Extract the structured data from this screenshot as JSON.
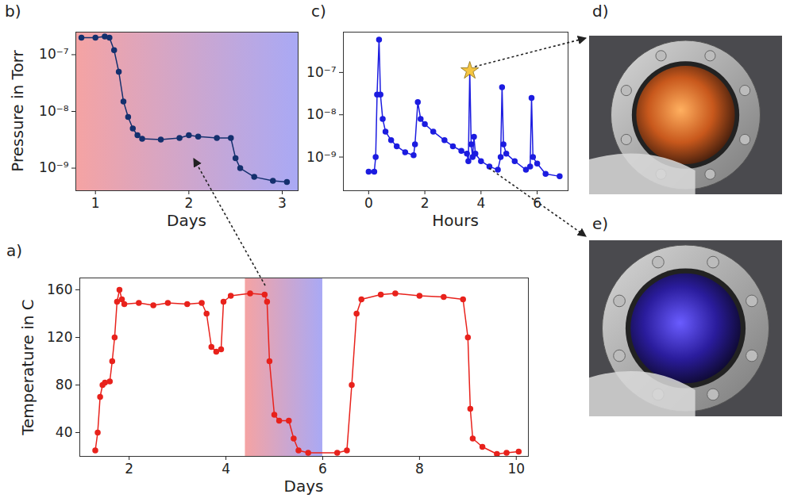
{
  "chart_data": [
    {
      "type": "line",
      "panel_label": "b)",
      "x_label": "Days",
      "y_label": "Pressure in Torr",
      "log": "y",
      "grid": false,
      "xlim": [
        0.79,
        3.17
      ],
      "xticks": [
        1,
        2,
        3
      ],
      "ylim": [
        4e-10,
        2.5e-07
      ],
      "yticks": [
        {
          "value": 1e-09,
          "label": "10⁻⁹"
        },
        {
          "value": 1e-08,
          "label": "10⁻⁸"
        },
        {
          "value": 1e-07,
          "label": "10⁻⁷"
        }
      ],
      "background_colors": [
        "#f5a3a3",
        "#a9a9f5"
      ],
      "series": [
        {
          "color": "#14306e",
          "marker": "o",
          "line_style": "solid",
          "x": [
            0.85,
            1.0,
            1.1,
            1.15,
            1.2,
            1.25,
            1.3,
            1.35,
            1.4,
            1.45,
            1.5,
            1.7,
            1.9,
            2.0,
            2.1,
            2.3,
            2.45,
            2.5,
            2.55,
            2.7,
            2.9,
            3.05
          ],
          "values": [
            2e-07,
            2e-07,
            2.1e-07,
            2e-07,
            1.2e-07,
            5e-08,
            1.5e-08,
            8e-09,
            5e-09,
            3.8e-09,
            3.3e-09,
            3.2e-09,
            3.4e-09,
            3.8e-09,
            3.6e-09,
            3.4e-09,
            3.4e-09,
            1.5e-09,
            1e-09,
            7e-10,
            6e-10,
            5.7e-10
          ]
        }
      ]
    },
    {
      "type": "line",
      "panel_label": "c)",
      "x_label": "Hours",
      "log": "y",
      "grid": false,
      "xlim": [
        -0.9,
        7.1
      ],
      "xticks": [
        0,
        2,
        4,
        6
      ],
      "ylim": [
        1.6e-10,
        9e-07
      ],
      "yticks": [
        {
          "value": 1e-09,
          "label": "10⁻⁹"
        },
        {
          "value": 1e-08,
          "label": "10⁻⁸"
        },
        {
          "value": 1e-07,
          "label": "10⁻⁷"
        }
      ],
      "highlight": {
        "x": 3.6,
        "y": 1.1e-07,
        "marker": "star",
        "color": "#f5c542"
      },
      "series": [
        {
          "color": "#1c1ce0",
          "marker": "o",
          "line_style": "solid",
          "x": [
            0,
            0.2,
            0.25,
            0.3,
            0.37,
            0.42,
            0.5,
            0.6,
            0.8,
            1.0,
            1.3,
            1.6,
            1.65,
            1.75,
            1.85,
            2.0,
            2.3,
            2.7,
            3.0,
            3.3,
            3.5,
            3.55,
            3.6,
            3.65,
            3.7,
            3.75,
            3.8,
            4.0,
            4.3,
            4.6,
            4.7,
            4.75,
            4.8,
            4.9,
            5.2,
            5.6,
            5.75,
            5.8,
            5.85,
            6.0,
            6.3,
            6.8
          ],
          "values": [
            4.5e-10,
            4.5e-10,
            1e-09,
            3e-08,
            6e-07,
            3e-08,
            8e-09,
            4e-09,
            2.5e-09,
            1.8e-09,
            1.3e-09,
            1.1e-09,
            2e-09,
            2e-08,
            8e-09,
            6e-09,
            4e-09,
            2.5e-09,
            1.8e-09,
            1.4e-09,
            1.2e-09,
            8e-10,
            1.1e-07,
            2e-09,
            1e-09,
            3e-09,
            1.2e-09,
            8e-10,
            6e-10,
            5e-10,
            1e-09,
            4.5e-08,
            2e-09,
            1.2e-09,
            8e-10,
            5e-10,
            6e-10,
            2.5e-08,
            1e-09,
            7e-10,
            4e-10,
            3.5e-10
          ]
        }
      ]
    },
    {
      "type": "line",
      "panel_label": "a)",
      "x_label": "Days",
      "y_label": "Temperature in C",
      "grid": false,
      "xlim": [
        0.98,
        10.25
      ],
      "xticks": [
        2,
        4,
        6,
        8,
        10
      ],
      "ylim": [
        20,
        170
      ],
      "yticks": [
        40,
        80,
        120,
        160
      ],
      "band": {
        "x": [
          4.4,
          6.0
        ],
        "colors": [
          "#f5a3a3",
          "#a9a9f5"
        ]
      },
      "series": [
        {
          "color": "#e8221c",
          "marker": "o",
          "line_style": "solid",
          "x": [
            1.3,
            1.35,
            1.4,
            1.45,
            1.5,
            1.6,
            1.65,
            1.7,
            1.75,
            1.8,
            1.85,
            1.9,
            2.2,
            2.5,
            2.8,
            3.2,
            3.5,
            3.6,
            3.7,
            3.8,
            3.9,
            3.95,
            4.1,
            4.5,
            4.8,
            4.85,
            4.9,
            5.0,
            5.1,
            5.3,
            5.4,
            5.5,
            5.7,
            6.3,
            6.5,
            6.6,
            6.7,
            6.8,
            7.2,
            7.5,
            8.0,
            8.5,
            8.9,
            9.0,
            9.05,
            9.1,
            9.3,
            9.6,
            9.8,
            10.05
          ],
          "values": [
            25,
            40,
            70,
            80,
            82,
            83,
            100,
            120,
            150,
            160,
            152,
            148,
            149,
            147,
            149,
            148,
            149,
            140,
            112,
            108,
            110,
            150,
            155,
            157,
            156,
            150,
            100,
            55,
            50,
            50,
            35,
            25,
            23,
            23,
            25,
            80,
            140,
            152,
            156,
            157,
            155,
            154,
            152,
            120,
            60,
            35,
            28,
            22,
            23,
            24
          ]
        }
      ]
    }
  ],
  "images": [
    {
      "panel_label": "d)",
      "type": "photo"
    },
    {
      "panel_label": "e)",
      "type": "photo"
    }
  ]
}
